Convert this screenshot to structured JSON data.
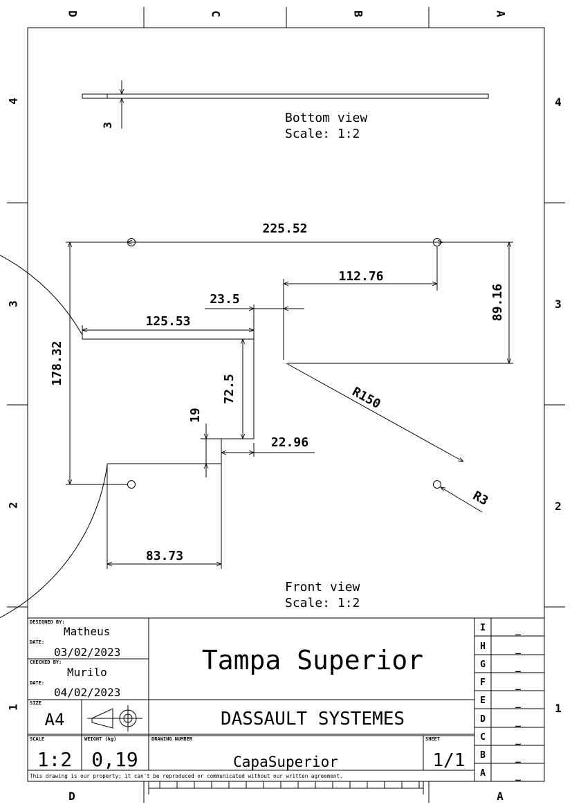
{
  "border": {
    "columns_top": [
      "D",
      "C",
      "B",
      "A"
    ],
    "columns_bottom": [
      "D",
      "A"
    ],
    "rows": [
      "4",
      "3",
      "2",
      "1"
    ]
  },
  "views": {
    "bottom": {
      "name": "Bottom view",
      "scale": "Scale:  1:2"
    },
    "front": {
      "name": "Front view",
      "scale": "Scale:  1:2"
    }
  },
  "dimensions": {
    "thickness": "3",
    "hole_span": "225.52",
    "right_offset": "112.76",
    "step_width": "23.5",
    "left_width": "125.53",
    "height_total": "178.32",
    "step_height": "72.5",
    "right_height": "89.16",
    "notch_height": "19",
    "notch_width": "22.96",
    "bottom_width": "83.73",
    "radius_outer": "R150",
    "radius_hole": "R3"
  },
  "title_block": {
    "designed_by_label": "DESIGNED BY:",
    "designed_by": "Matheus",
    "date_label": "DATE:",
    "designed_date": "03/02/2023",
    "checked_by_label": "CHECKED BY:",
    "checked_by": "Murilo",
    "checked_date": "04/02/2023",
    "title": "Tampa Superior",
    "company": "DASSAULT SYSTEMES",
    "size_label": "SIZE",
    "size": "A4",
    "scale_label": "SCALE",
    "scale": "1:2",
    "weight_label": "WEIGHT (kg)",
    "weight": "0,19",
    "drawing_number_label": "DRAWING NUMBER",
    "drawing_number": "CapaSuperior",
    "sheet_label": "SHEET",
    "sheet": "1/1",
    "disclaimer": "This drawing is our property; it can't be reproduced or communicated without our written agreement.",
    "revisions": [
      {
        "letter": "I",
        "value": "_"
      },
      {
        "letter": "H",
        "value": "_"
      },
      {
        "letter": "G",
        "value": "_"
      },
      {
        "letter": "F",
        "value": "_"
      },
      {
        "letter": "E",
        "value": "_"
      },
      {
        "letter": "D",
        "value": "_"
      },
      {
        "letter": "C",
        "value": "_"
      },
      {
        "letter": "B",
        "value": "_"
      },
      {
        "letter": "A",
        "value": "_"
      }
    ]
  }
}
